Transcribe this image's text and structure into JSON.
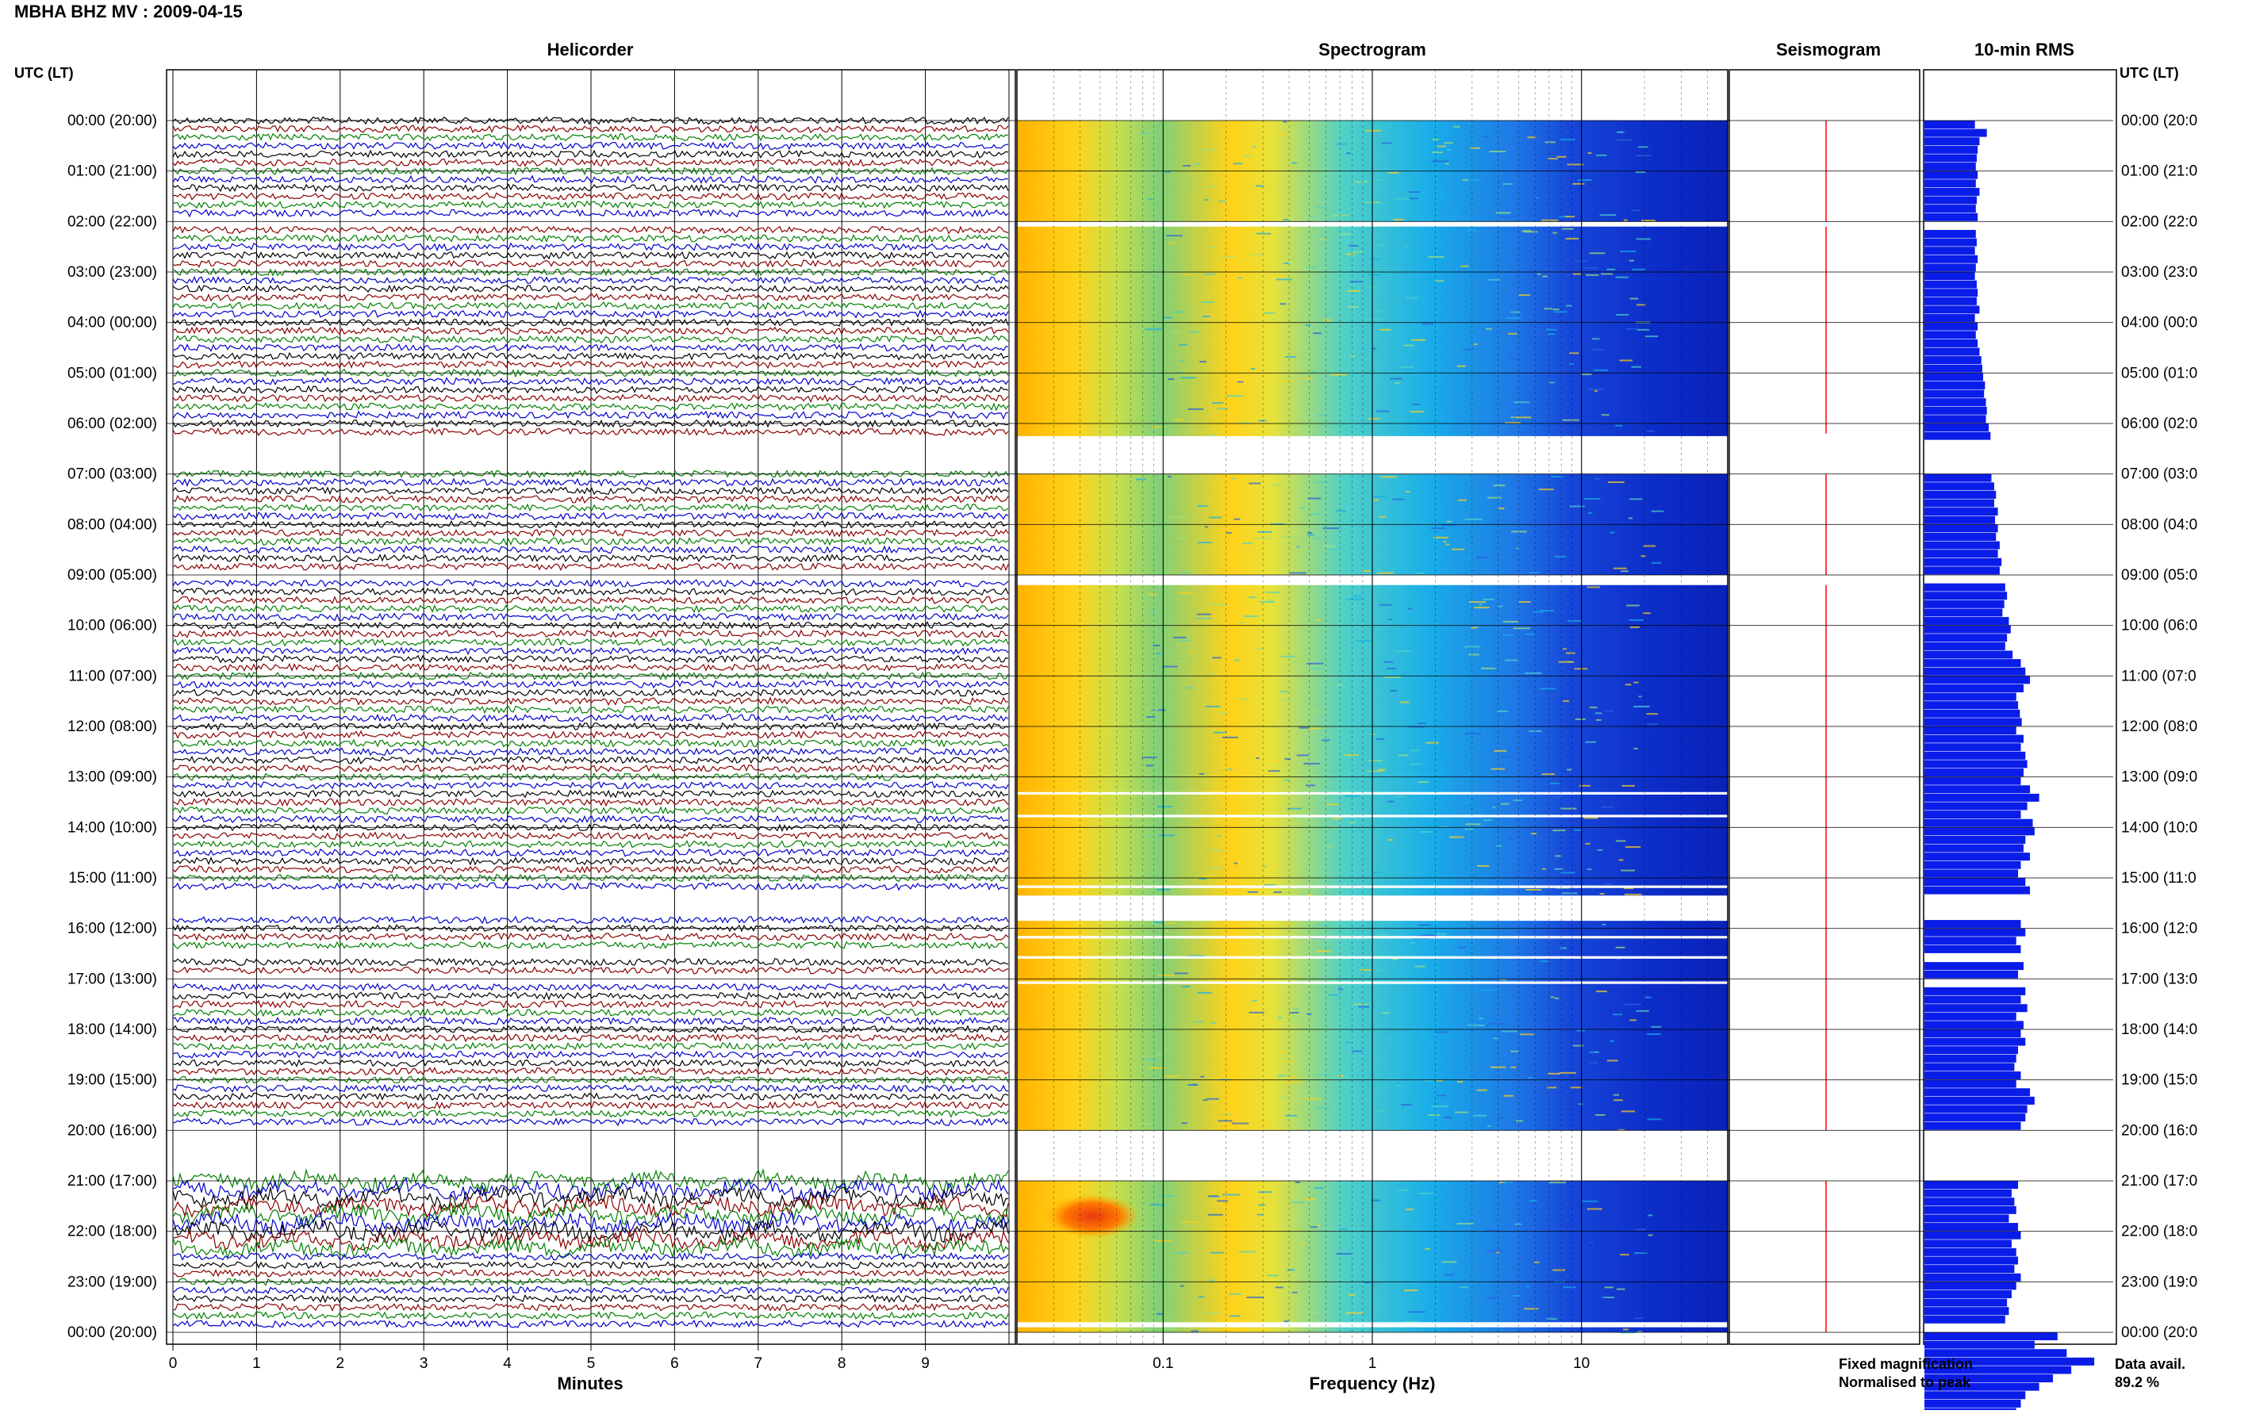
{
  "title": "MBHA BHZ MV : 2009-04-15",
  "panels": {
    "helicorder_title": "Helicorder",
    "spectrogram_title": "Spectrogram",
    "seismogram_title": "Seismogram",
    "rms_title": "10-min RMS"
  },
  "axis": {
    "left_label": "UTC (LT)",
    "right_label": "UTC (LT)",
    "minutes_label": "Minutes",
    "frequency_label": "Frequency (Hz)"
  },
  "legend": {
    "fixed": "Fixed magnification",
    "normalised": "Normalised to peak",
    "fixed_color": "#1a1aff",
    "normalised_color": "#ff0000"
  },
  "data_avail": {
    "label": "Data avail.",
    "value": "89.2 %"
  },
  "colors": {
    "trace_cycle": [
      "#000000",
      "#8b0000",
      "#008000",
      "#0000cd"
    ],
    "rms_bar": "#0a1ce8",
    "seismogram_line": "#ff0000"
  },
  "chart_data": {
    "type": "heatmap",
    "hour_labels": [
      "00:00 (20:00)",
      "01:00 (21:00)",
      "02:00 (22:00)",
      "03:00 (23:00)",
      "04:00 (00:00)",
      "05:00 (01:00)",
      "06:00 (02:00)",
      "07:00 (03:00)",
      "08:00 (04:00)",
      "09:00 (05:00)",
      "10:00 (06:00)",
      "11:00 (07:00)",
      "12:00 (08:00)",
      "13:00 (09:00)",
      "14:00 (10:00)",
      "15:00 (11:00)",
      "16:00 (12:00)",
      "17:00 (13:00)",
      "18:00 (14:00)",
      "19:00 (15:00)",
      "20:00 (16:00)",
      "21:00 (17:00)",
      "22:00 (18:00)",
      "23:00 (19:00)",
      "00:00 (20:00)"
    ],
    "right_hour_labels": [
      "00:00 (20:0",
      "01:00 (21:0",
      "02:00 (22:0",
      "03:00 (23:0",
      "04:00 (00:0",
      "05:00 (01:0",
      "06:00 (02:0",
      "07:00 (03:0",
      "08:00 (04:0",
      "09:00 (05:0",
      "10:00 (06:0",
      "11:00 (07:0",
      "12:00 (08:0",
      "13:00 (09:0",
      "14:00 (10:0",
      "15:00 (11:0",
      "16:00 (12:0",
      "17:00 (13:0",
      "18:00 (14:0",
      "19:00 (15:0",
      "20:00 (16:0",
      "21:00 (17:0",
      "22:00 (18:0",
      "23:00 (19:0",
      "00:00 (20:0"
    ],
    "minute_ticks": [
      "0",
      "1",
      "2",
      "3",
      "4",
      "5",
      "6",
      "7",
      "8",
      "9"
    ],
    "minutes_range": [
      0,
      10
    ],
    "frequency_ticks": [
      "0.1",
      "1",
      "10"
    ],
    "frequency_range_hz": [
      0.02,
      50
    ],
    "lines_per_hour": 6,
    "gap_hours": [
      [
        2.0,
        2.1
      ],
      [
        6.25,
        7.0
      ],
      [
        9.0,
        9.2
      ],
      [
        13.3,
        13.35
      ],
      [
        13.75,
        13.8
      ],
      [
        15.15,
        15.2
      ],
      [
        15.35,
        15.85
      ],
      [
        16.15,
        16.2
      ],
      [
        16.55,
        16.6
      ],
      [
        17.05,
        17.1
      ],
      [
        20.0,
        21.0
      ],
      [
        23.8,
        23.9
      ]
    ],
    "rms_values": [
      0.55,
      0.68,
      0.6,
      0.58,
      0.57,
      0.56,
      0.58,
      0.56,
      0.6,
      0.57,
      0.56,
      0.58,
      0.62,
      0.56,
      0.57,
      0.55,
      0.58,
      0.56,
      0.55,
      0.57,
      0.58,
      0.57,
      0.6,
      0.55,
      0.58,
      0.56,
      0.58,
      0.6,
      0.62,
      0.63,
      0.64,
      0.66,
      0.65,
      0.67,
      0.68,
      0.67,
      0.7,
      0.72,
      0.68,
      0.74,
      0.72,
      0.75,
      0.73,
      0.76,
      0.78,
      0.76,
      0.8,
      0.77,
      0.8,
      0.78,
      0.82,
      0.8,
      0.84,
      0.82,
      0.86,
      0.88,
      0.9,
      0.87,
      0.85,
      0.92,
      0.94,
      0.9,
      0.88,
      0.96,
      1.05,
      1.1,
      1.15,
      1.08,
      1.0,
      1.02,
      1.04,
      1.06,
      1.0,
      1.08,
      1.05,
      1.1,
      1.12,
      1.08,
      1.05,
      1.15,
      1.25,
      1.12,
      1.05,
      1.18,
      1.2,
      1.1,
      1.08,
      1.15,
      1.05,
      1.02,
      1.1,
      1.15,
      1.2,
      1.12,
      1.08,
      1.05,
      1.1,
      1.0,
      1.05,
      1.12,
      1.08,
      1.02,
      1.05,
      1.1,
      1.05,
      1.12,
      1.0,
      1.08,
      1.05,
      1.1,
      1.02,
      1.0,
      0.98,
      1.05,
      1.0,
      1.15,
      1.2,
      1.12,
      1.1,
      1.05,
      0.95,
      1.0,
      0.92,
      1.05,
      0.98,
      1.1,
      1.02,
      0.95,
      0.98,
      1.0,
      0.92,
      1.02,
      1.05,
      0.95,
      1.0,
      1.02,
      0.98,
      1.05,
      1.0,
      0.95,
      0.9,
      0.92,
      0.88,
      0.95,
      1.45,
      1.2,
      1.55,
      1.85,
      1.6,
      1.4,
      1.25,
      1.1,
      1.05,
      1.0,
      1.15,
      0.98,
      1.05,
      1.0,
      0.95,
      0.92,
      1.0,
      0.95
    ],
    "seismogram_gap_hours": [
      [
        2.0,
        2.1
      ],
      [
        6.2,
        7.0
      ],
      [
        9.0,
        9.2
      ],
      [
        20.0,
        21.0
      ]
    ]
  }
}
